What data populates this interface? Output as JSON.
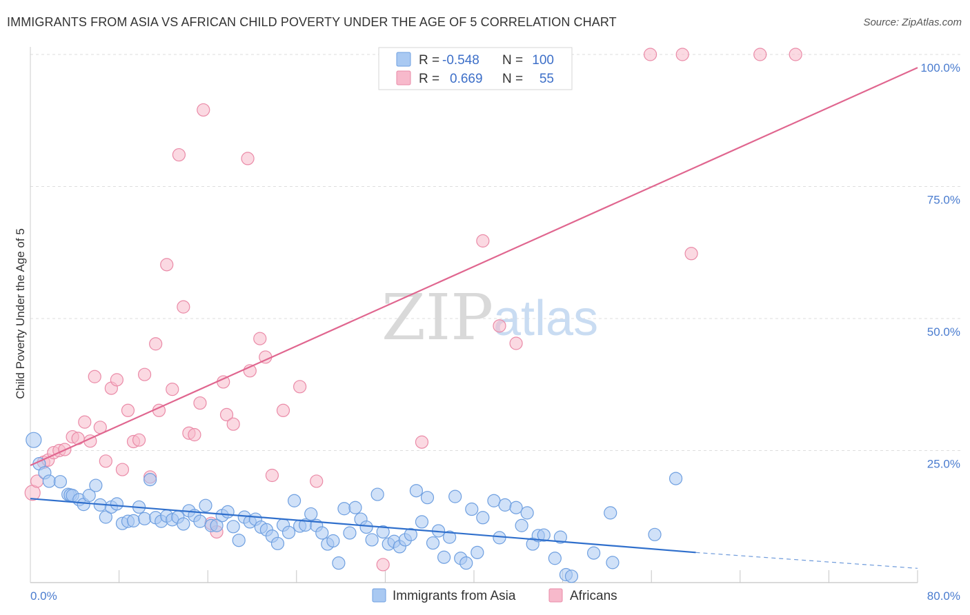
{
  "title": "IMMIGRANTS FROM ASIA VS AFRICAN CHILD POVERTY UNDER THE AGE OF 5 CORRELATION CHART",
  "source": "Source: ZipAtlas.com",
  "watermark": {
    "part1": "ZIP",
    "part2": "atlas"
  },
  "legend": {
    "rows": [
      {
        "r_label": "R =",
        "r_value": "-0.548",
        "n_label": "N =",
        "n_value": "100",
        "color": "#a9c9f2",
        "stroke": "#6e9fe0"
      },
      {
        "r_label": "R =",
        "r_value": "0.669",
        "n_label": "N =",
        "n_value": "55",
        "color": "#f7b9cb",
        "stroke": "#ea8aa7"
      }
    ]
  },
  "bottom_legend": [
    "Immigrants from Asia",
    "Africans"
  ],
  "chart_data": {
    "type": "scatter",
    "title": "IMMIGRANTS FROM ASIA VS AFRICAN CHILD POVERTY UNDER THE AGE OF 5 CORRELATION CHART",
    "xlabel": "",
    "ylabel": "Child Poverty Under the Age of 5",
    "xlim": [
      0,
      80
    ],
    "ylim": [
      0,
      100
    ],
    "x_tick_labels": [
      "0.0%",
      "80.0%"
    ],
    "y_tick_labels": [
      "25.0%",
      "50.0%",
      "75.0%",
      "100.0%"
    ],
    "y_ticks": [
      25,
      50,
      75,
      100
    ],
    "grid": true,
    "legend_position": "top-center",
    "colors": {
      "asia_fill": "#a9c9f2",
      "asia_stroke": "#6e9fe0",
      "asia_line": "#2f6fcc",
      "africa_fill": "#f7b9cb",
      "africa_stroke": "#ea8aa7",
      "africa_line": "#e0668f"
    },
    "series": [
      {
        "name": "Immigrants from Asia",
        "trend": {
          "x": [
            0,
            60,
            80
          ],
          "y": [
            15.9,
            5.7,
            2.7
          ],
          "solid_until": 60
        },
        "points": [
          [
            0.3,
            27.0
          ],
          [
            0.8,
            22.5
          ],
          [
            1.3,
            20.8
          ],
          [
            1.7,
            19.2
          ],
          [
            2.7,
            19.1
          ],
          [
            3.4,
            16.7
          ],
          [
            3.6,
            16.6
          ],
          [
            3.8,
            16.5
          ],
          [
            4.4,
            15.7
          ],
          [
            4.8,
            14.8
          ],
          [
            5.3,
            16.5
          ],
          [
            5.9,
            18.4
          ],
          [
            6.3,
            14.7
          ],
          [
            6.8,
            12.4
          ],
          [
            7.3,
            14.3
          ],
          [
            7.8,
            14.9
          ],
          [
            8.3,
            11.2
          ],
          [
            8.8,
            11.6
          ],
          [
            9.3,
            11.7
          ],
          [
            9.8,
            14.3
          ],
          [
            10.3,
            12.1
          ],
          [
            10.8,
            19.5
          ],
          [
            11.3,
            12.3
          ],
          [
            11.8,
            11.6
          ],
          [
            12.3,
            12.6
          ],
          [
            12.8,
            11.9
          ],
          [
            13.3,
            12.4
          ],
          [
            13.8,
            11.1
          ],
          [
            14.3,
            13.6
          ],
          [
            14.8,
            12.7
          ],
          [
            15.3,
            11.6
          ],
          [
            15.8,
            14.6
          ],
          [
            16.3,
            10.8
          ],
          [
            16.8,
            10.8
          ],
          [
            17.3,
            12.7
          ],
          [
            17.8,
            13.4
          ],
          [
            18.3,
            10.6
          ],
          [
            18.8,
            8.0
          ],
          [
            19.3,
            12.4
          ],
          [
            19.8,
            11.5
          ],
          [
            20.3,
            12.0
          ],
          [
            20.8,
            10.5
          ],
          [
            21.3,
            10.0
          ],
          [
            21.8,
            8.8
          ],
          [
            22.3,
            7.4
          ],
          [
            22.8,
            10.9
          ],
          [
            23.3,
            9.5
          ],
          [
            23.8,
            15.5
          ],
          [
            24.3,
            10.7
          ],
          [
            24.8,
            10.9
          ],
          [
            25.3,
            13.0
          ],
          [
            25.8,
            10.8
          ],
          [
            26.3,
            9.4
          ],
          [
            26.8,
            7.3
          ],
          [
            27.3,
            7.9
          ],
          [
            27.8,
            3.7
          ],
          [
            28.3,
            14.0
          ],
          [
            28.8,
            9.4
          ],
          [
            29.3,
            14.2
          ],
          [
            29.8,
            12.0
          ],
          [
            30.3,
            10.5
          ],
          [
            30.8,
            8.1
          ],
          [
            31.3,
            16.7
          ],
          [
            31.8,
            9.6
          ],
          [
            32.3,
            7.3
          ],
          [
            32.8,
            7.8
          ],
          [
            33.3,
            6.8
          ],
          [
            33.8,
            8.1
          ],
          [
            34.3,
            9.1
          ],
          [
            34.8,
            17.4
          ],
          [
            35.3,
            11.5
          ],
          [
            35.8,
            16.1
          ],
          [
            36.3,
            7.5
          ],
          [
            36.8,
            9.8
          ],
          [
            37.3,
            4.8
          ],
          [
            37.8,
            8.6
          ],
          [
            38.3,
            16.3
          ],
          [
            38.8,
            4.6
          ],
          [
            39.3,
            3.7
          ],
          [
            39.8,
            13.9
          ],
          [
            40.3,
            5.7
          ],
          [
            40.8,
            12.3
          ],
          [
            41.8,
            15.5
          ],
          [
            42.3,
            8.5
          ],
          [
            42.8,
            14.7
          ],
          [
            43.8,
            14.2
          ],
          [
            44.3,
            10.8
          ],
          [
            44.8,
            13.2
          ],
          [
            45.3,
            7.3
          ],
          [
            45.8,
            8.9
          ],
          [
            46.3,
            9.0
          ],
          [
            47.3,
            4.6
          ],
          [
            47.8,
            8.6
          ],
          [
            48.3,
            1.5
          ],
          [
            48.8,
            1.2
          ],
          [
            50.8,
            5.6
          ],
          [
            52.3,
            13.2
          ],
          [
            52.5,
            3.8
          ],
          [
            56.3,
            9.1
          ],
          [
            58.2,
            19.7
          ]
        ]
      },
      {
        "name": "Africans",
        "trend": {
          "x": [
            0,
            80
          ],
          "y": [
            22.2,
            97.5
          ]
        },
        "points": [
          [
            0.2,
            17.0
          ],
          [
            0.6,
            19.2
          ],
          [
            1.2,
            22.8
          ],
          [
            1.6,
            23.2
          ],
          [
            2.1,
            24.6
          ],
          [
            2.6,
            25.0
          ],
          [
            3.1,
            25.2
          ],
          [
            3.8,
            27.6
          ],
          [
            4.3,
            27.3
          ],
          [
            4.9,
            30.4
          ],
          [
            5.4,
            26.8
          ],
          [
            5.8,
            39.0
          ],
          [
            6.3,
            29.4
          ],
          [
            6.8,
            23.0
          ],
          [
            7.3,
            36.8
          ],
          [
            7.8,
            38.4
          ],
          [
            8.3,
            21.4
          ],
          [
            8.8,
            32.6
          ],
          [
            9.3,
            26.7
          ],
          [
            9.8,
            27.0
          ],
          [
            10.3,
            39.4
          ],
          [
            10.8,
            20.0
          ],
          [
            11.3,
            45.2
          ],
          [
            11.6,
            32.6
          ],
          [
            12.3,
            60.2
          ],
          [
            12.8,
            36.6
          ],
          [
            13.4,
            81.0
          ],
          [
            13.8,
            52.2
          ],
          [
            14.3,
            28.3
          ],
          [
            14.8,
            28.0
          ],
          [
            15.3,
            34.0
          ],
          [
            15.6,
            89.5
          ],
          [
            16.3,
            11.2
          ],
          [
            16.8,
            9.6
          ],
          [
            17.4,
            38.0
          ],
          [
            17.7,
            31.8
          ],
          [
            18.3,
            30.0
          ],
          [
            19.6,
            80.3
          ],
          [
            19.8,
            40.1
          ],
          [
            20.7,
            46.2
          ],
          [
            21.2,
            42.7
          ],
          [
            21.8,
            20.3
          ],
          [
            22.8,
            32.6
          ],
          [
            24.3,
            37.1
          ],
          [
            25.8,
            19.2
          ],
          [
            31.8,
            3.4
          ],
          [
            35.3,
            26.6
          ],
          [
            40.8,
            64.7
          ],
          [
            42.3,
            48.6
          ],
          [
            43.8,
            45.3
          ],
          [
            55.9,
            100
          ],
          [
            58.8,
            100
          ],
          [
            59.6,
            62.3
          ],
          [
            65.8,
            100
          ],
          [
            69.0,
            100
          ]
        ]
      }
    ]
  }
}
